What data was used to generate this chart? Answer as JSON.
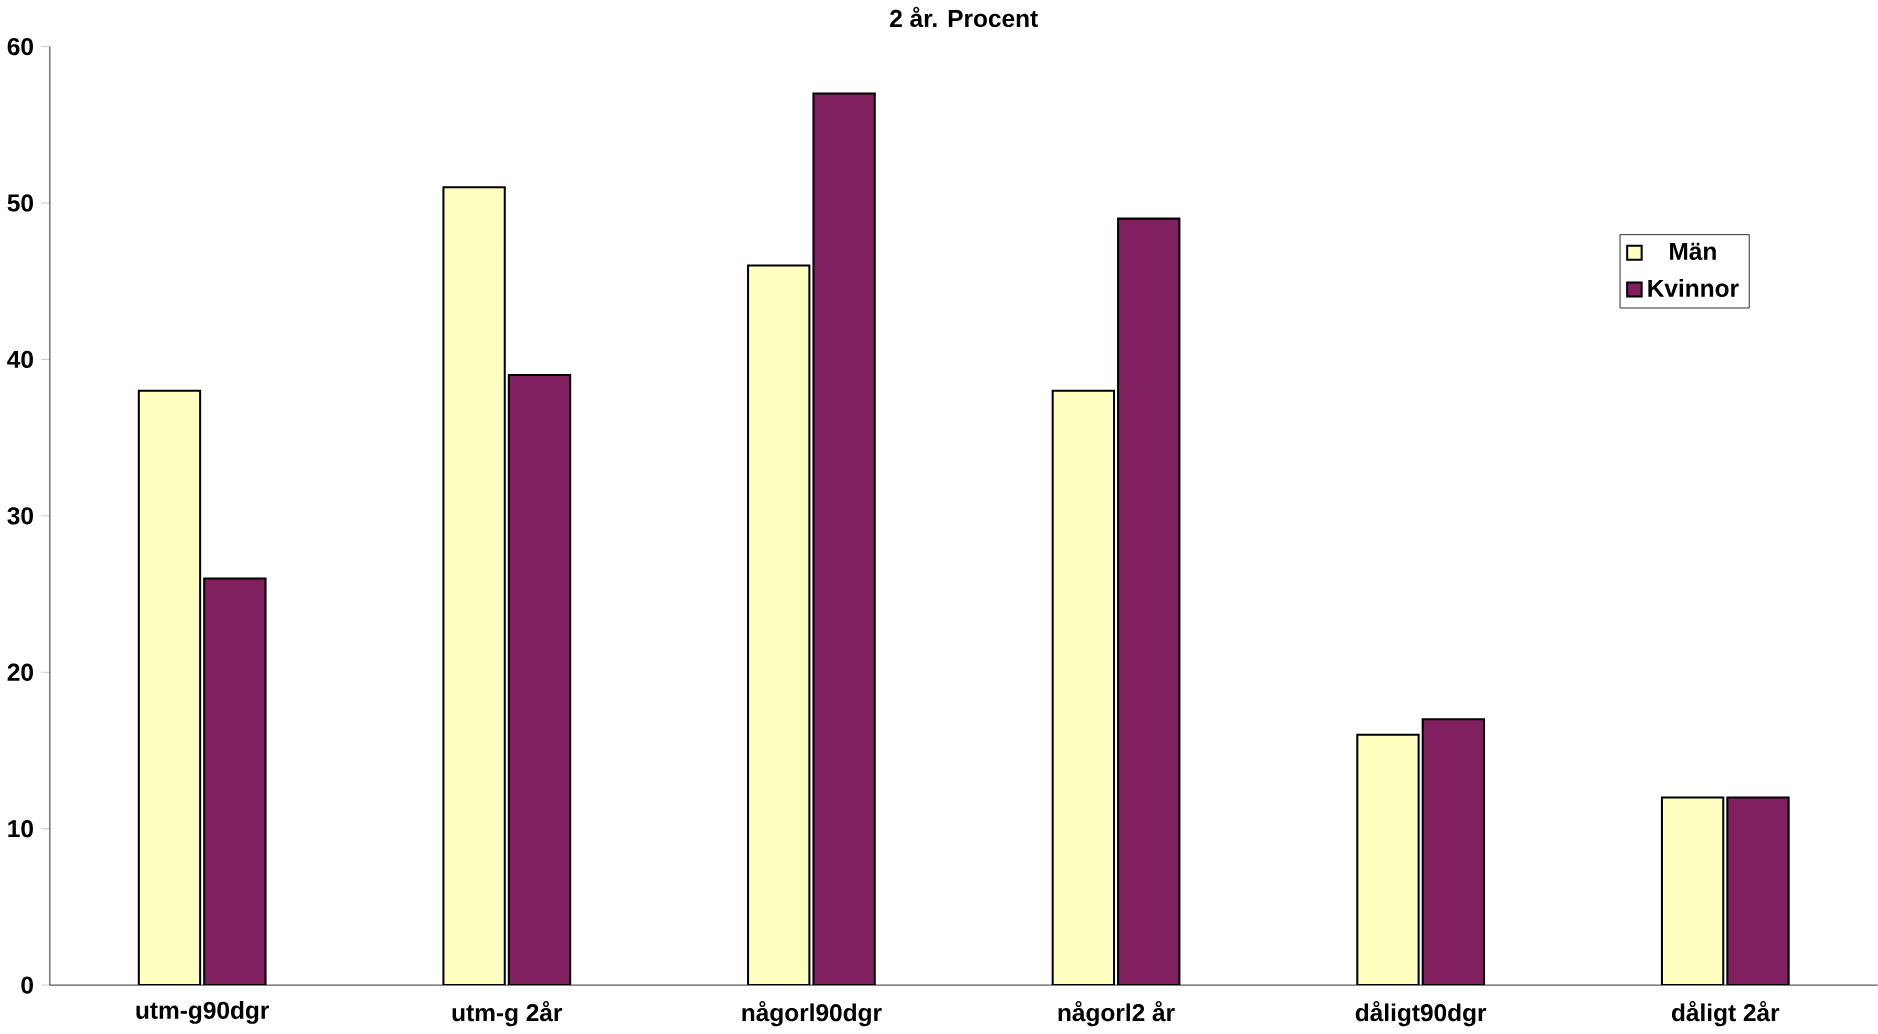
{
  "chart_data": {
    "type": "bar",
    "title": "2 år. Procent",
    "categories": [
      "utm-g90dgr",
      "utm-g 2år",
      "någorl90dgr",
      "någorl2 år",
      "dåligt90dgr",
      "dåligt 2år"
    ],
    "series": [
      {
        "name": "Män",
        "color": "#ffffc0",
        "values": [
          38,
          51,
          46,
          38,
          16,
          12
        ]
      },
      {
        "name": "Kvinnor",
        "color": "#80205f",
        "values": [
          26,
          39,
          57,
          49,
          17,
          12
        ]
      }
    ],
    "ylim": [
      0,
      60
    ],
    "yticks": [
      0,
      10,
      20,
      30,
      40,
      50,
      60
    ],
    "legend": "top right"
  }
}
